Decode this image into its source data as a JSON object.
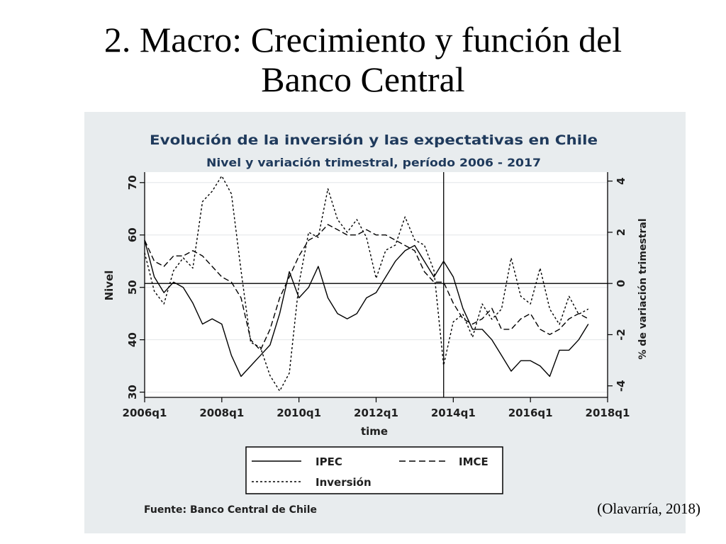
{
  "slide": {
    "title_line1": "2. Macro: Crecimiento y función del",
    "title_line2": "Banco Central",
    "citation": "(Olavarría, 2018)"
  },
  "chart_data": {
    "type": "line",
    "title": "Evolución de la inversión y las expectativas en Chile",
    "subtitle": "Nivel y variación trimestral, período 2006 - 2017",
    "xlabel": "time",
    "ylabel_left": "Nivel",
    "ylabel_right": "% de variación trimestral",
    "xlim": [
      2006.0,
      2018.0
    ],
    "ylim_left": [
      29,
      72
    ],
    "ylim_right": [
      -4.45,
      4.35
    ],
    "x_ticks": [
      {
        "value": 2006,
        "label": "2006q1"
      },
      {
        "value": 2008,
        "label": "2008q1"
      },
      {
        "value": 2010,
        "label": "2010q1"
      },
      {
        "value": 2012,
        "label": "2012q1"
      },
      {
        "value": 2014,
        "label": "2014q1"
      },
      {
        "value": 2016,
        "label": "2016q1"
      },
      {
        "value": 2018,
        "label": "2018q1"
      }
    ],
    "y_ticks_left": [
      30,
      40,
      50,
      60,
      70
    ],
    "y_ticks_right": [
      -4,
      -2,
      0,
      2,
      4
    ],
    "grid": true,
    "reference_lines": {
      "vertical_x": 2013.75,
      "horizontal_right_y": 0
    },
    "legend_position": "bottom",
    "source": "Fuente: Banco Central de Chile",
    "series": [
      {
        "name": "IPEC",
        "axis": "left",
        "style": "solid",
        "x": [
          2006.0,
          2006.25,
          2006.5,
          2006.75,
          2007.0,
          2007.25,
          2007.5,
          2007.75,
          2008.0,
          2008.25,
          2008.5,
          2008.75,
          2009.0,
          2009.25,
          2009.5,
          2009.75,
          2010.0,
          2010.25,
          2010.5,
          2010.75,
          2011.0,
          2011.25,
          2011.5,
          2011.75,
          2012.0,
          2012.25,
          2012.5,
          2012.75,
          2013.0,
          2013.25,
          2013.5,
          2013.75,
          2014.0,
          2014.25,
          2014.5,
          2014.75,
          2015.0,
          2015.25,
          2015.5,
          2015.75,
          2016.0,
          2016.25,
          2016.5,
          2016.75,
          2017.0,
          2017.25,
          2017.5
        ],
        "values": [
          59,
          52,
          49,
          51,
          50,
          47,
          43,
          44,
          43,
          37,
          33,
          35,
          37,
          39,
          45,
          53,
          48,
          50,
          54,
          48,
          45,
          44,
          45,
          48,
          49,
          52,
          55,
          57,
          58,
          55,
          52,
          55,
          52,
          46,
          42,
          42,
          40,
          37,
          34,
          36,
          36,
          35,
          33,
          38,
          38,
          40,
          43
        ]
      },
      {
        "name": "IMCE",
        "axis": "left",
        "style": "dashed",
        "x": [
          2006.0,
          2006.25,
          2006.5,
          2006.75,
          2007.0,
          2007.25,
          2007.5,
          2007.75,
          2008.0,
          2008.25,
          2008.5,
          2008.75,
          2009.0,
          2009.25,
          2009.5,
          2009.75,
          2010.0,
          2010.25,
          2010.5,
          2010.75,
          2011.0,
          2011.25,
          2011.5,
          2011.75,
          2012.0,
          2012.25,
          2012.5,
          2012.75,
          2013.0,
          2013.25,
          2013.5,
          2013.75,
          2014.0,
          2014.25,
          2014.5,
          2014.75,
          2015.0,
          2015.25,
          2015.5,
          2015.75,
          2016.0,
          2016.25,
          2016.5,
          2016.75,
          2017.0,
          2017.25,
          2017.5
        ],
        "values": [
          59,
          55,
          54,
          56,
          56,
          57,
          56,
          54,
          52,
          51,
          48,
          40,
          38,
          42,
          48,
          52,
          56,
          59,
          60,
          62,
          61,
          60,
          60,
          61,
          60,
          60,
          59,
          58,
          57,
          53,
          51,
          51,
          47,
          44,
          43,
          44,
          46,
          42,
          42,
          44,
          45,
          42,
          41,
          42,
          44,
          45,
          44
        ]
      },
      {
        "name": "Inversión",
        "axis": "right",
        "style": "dotted",
        "x": [
          2006.0,
          2006.25,
          2006.5,
          2006.75,
          2007.0,
          2007.25,
          2007.5,
          2007.75,
          2008.0,
          2008.25,
          2008.5,
          2008.75,
          2009.0,
          2009.25,
          2009.5,
          2009.75,
          2010.0,
          2010.25,
          2010.5,
          2010.75,
          2011.0,
          2011.25,
          2011.5,
          2011.75,
          2012.0,
          2012.25,
          2012.5,
          2012.75,
          2013.0,
          2013.25,
          2013.5,
          2013.75,
          2014.0,
          2014.25,
          2014.5,
          2014.75,
          2015.0,
          2015.25,
          2015.5,
          2015.75,
          2016.0,
          2016.25,
          2016.5,
          2016.75,
          2017.0,
          2017.25,
          2017.5
        ],
        "values": [
          1.2,
          -0.3,
          -0.8,
          0.5,
          1.0,
          0.6,
          3.2,
          3.6,
          4.2,
          3.5,
          0.5,
          -2.3,
          -2.5,
          -3.6,
          -4.2,
          -3.5,
          0.0,
          2.0,
          1.8,
          3.7,
          2.5,
          2.0,
          2.5,
          1.8,
          0.2,
          1.3,
          1.5,
          2.6,
          1.7,
          1.5,
          0.5,
          -3.2,
          -1.5,
          -1.2,
          -2.1,
          -0.8,
          -1.4,
          -1.0,
          1.0,
          -0.5,
          -0.8,
          0.6,
          -1.0,
          -1.6,
          -0.5,
          -1.2,
          -1.0
        ]
      }
    ]
  }
}
